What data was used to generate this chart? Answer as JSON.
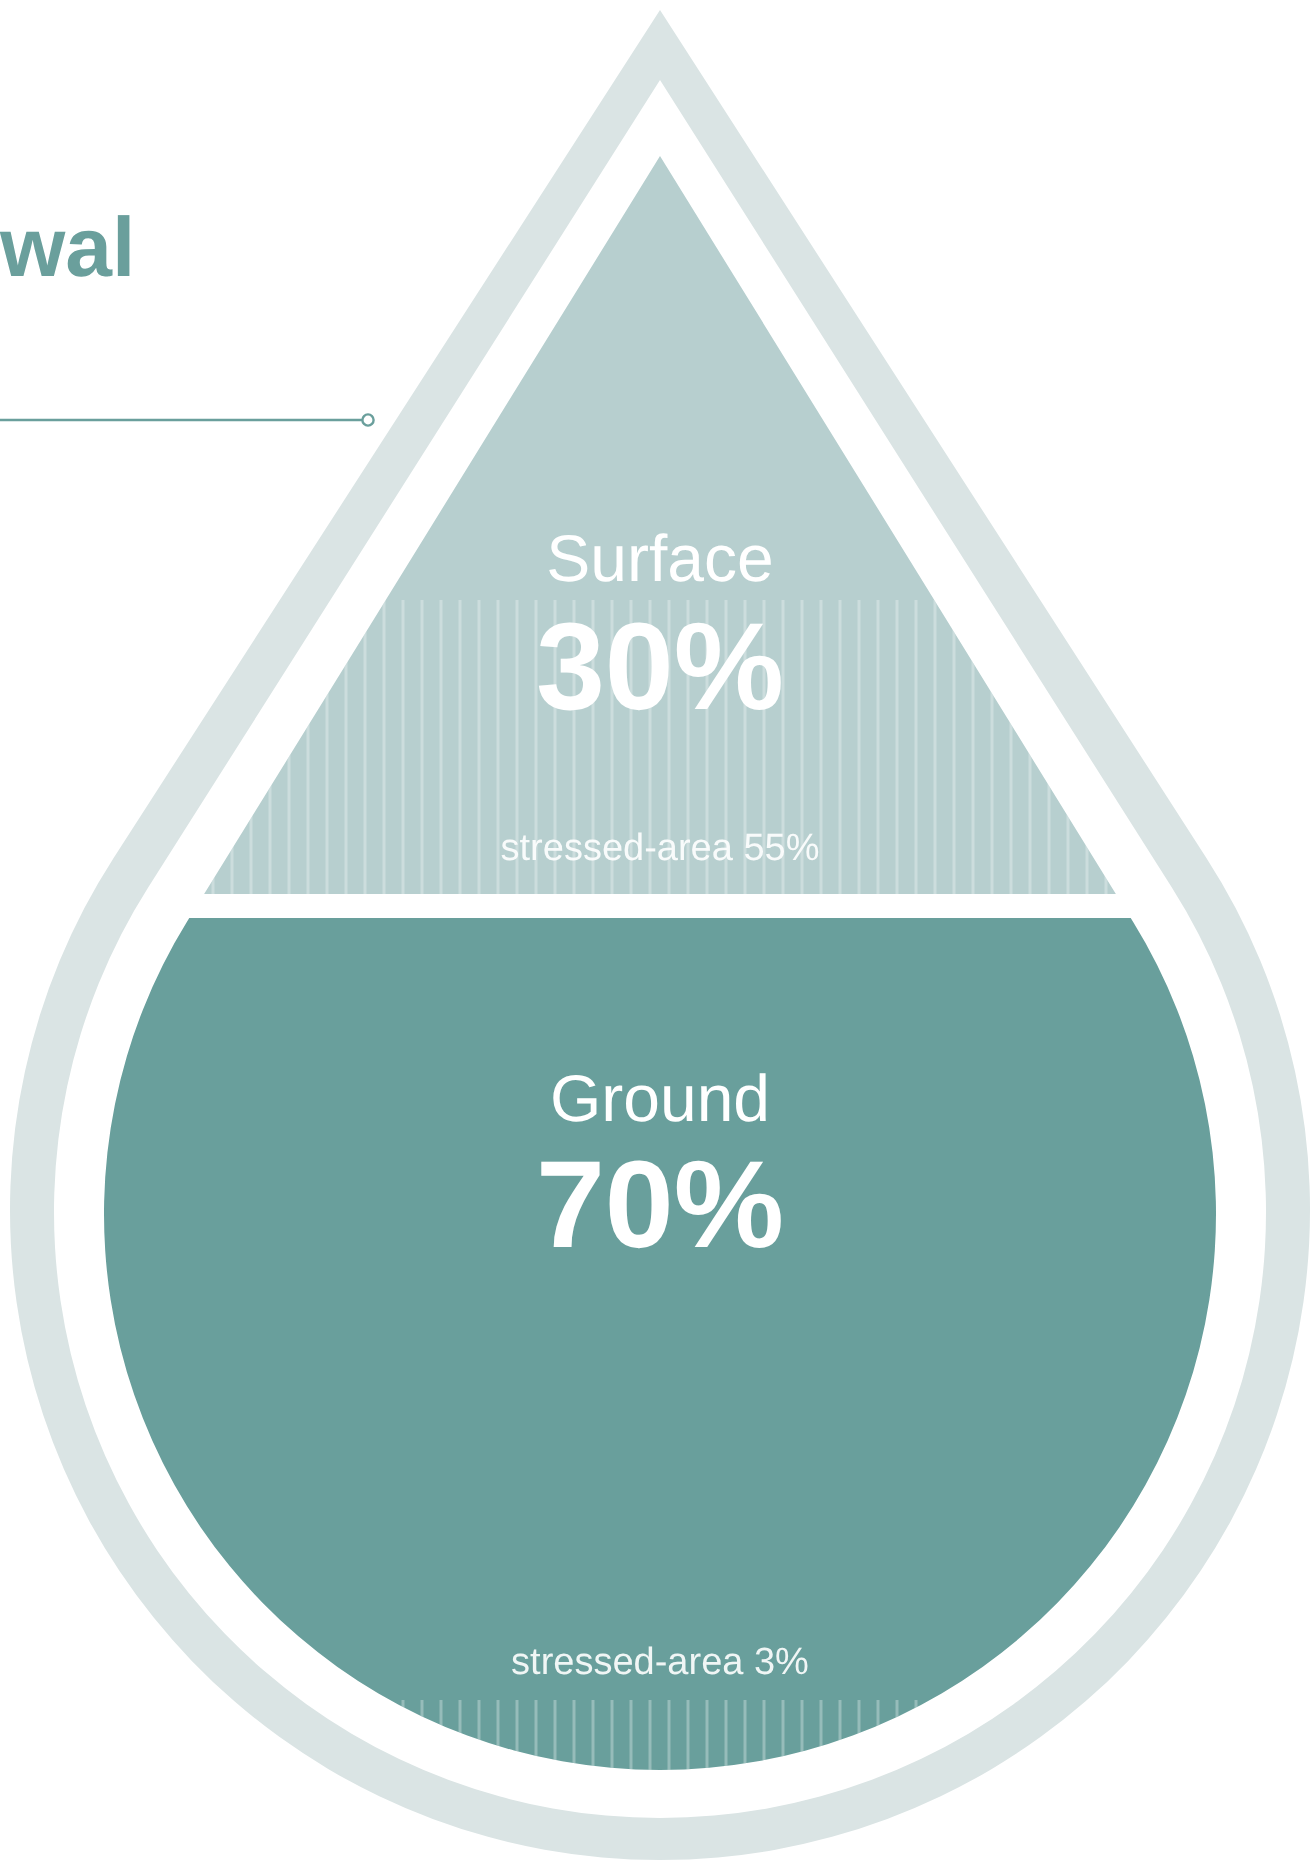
{
  "chart_data": {
    "type": "other",
    "title": "wal",
    "categories": [
      "Surface",
      "Ground"
    ],
    "values": [
      30,
      70
    ],
    "value_labels": [
      "30%",
      "70%"
    ],
    "colors": [
      "#b7cfcf",
      "#699f9c"
    ],
    "annotations": [
      "stressed-area 55%",
      "stressed-area 3%"
    ]
  }
}
